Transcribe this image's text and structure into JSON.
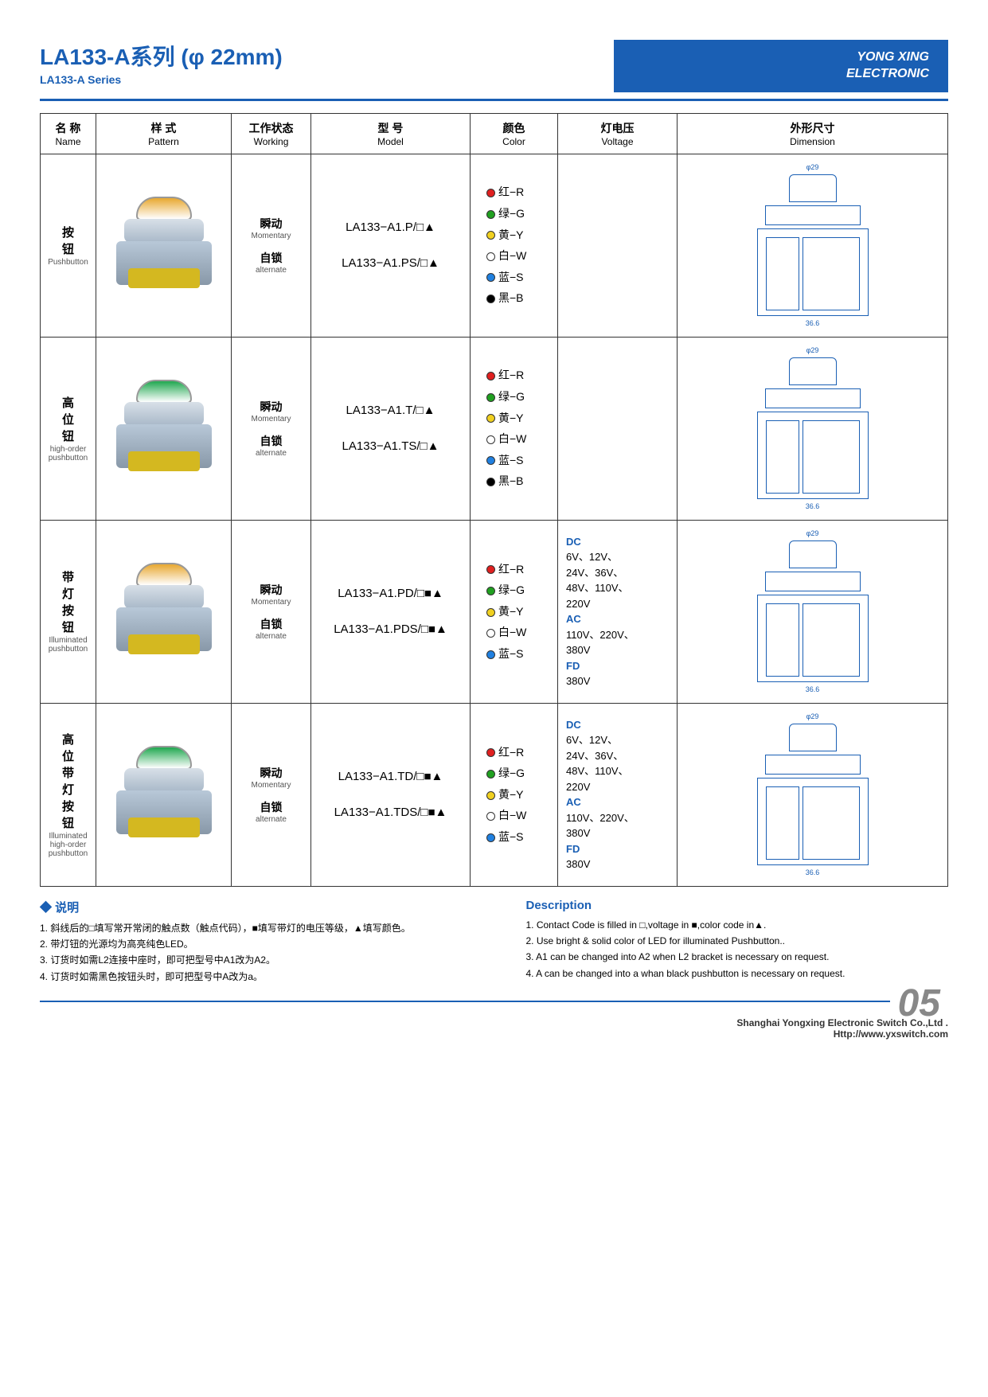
{
  "header": {
    "title": "LA133-A系列 (φ 22mm)",
    "subtitle": "LA133-A Series",
    "brand_line1": "YONG XING",
    "brand_line2": "ELECTRONIC"
  },
  "columns": [
    {
      "cn": "名 称",
      "en": "Name"
    },
    {
      "cn": "样 式",
      "en": "Pattern"
    },
    {
      "cn": "工作状态",
      "en": "Working"
    },
    {
      "cn": "型 号",
      "en": "Model"
    },
    {
      "cn": "颜色",
      "en": "Color"
    },
    {
      "cn": "灯电压",
      "en": "Voltage"
    },
    {
      "cn": "外形尺寸",
      "en": "Dimension"
    }
  ],
  "working_labels": {
    "m_cn": "瞬动",
    "m_en": "Momentary",
    "a_cn": "自锁",
    "a_en": "alternate"
  },
  "colors6": [
    {
      "hex": "#e02020",
      "label": "红−R"
    },
    {
      "hex": "#20a020",
      "label": "绿−G"
    },
    {
      "hex": "#f0d020",
      "label": "黄−Y"
    },
    {
      "hex": "#ffffff",
      "label": "白−W"
    },
    {
      "hex": "#2080e0",
      "label": "蓝−S"
    },
    {
      "hex": "#000000",
      "label": "黑−B"
    }
  ],
  "colors5": [
    {
      "hex": "#e02020",
      "label": "红−R"
    },
    {
      "hex": "#20a020",
      "label": "绿−G"
    },
    {
      "hex": "#f0d020",
      "label": "黄−Y"
    },
    {
      "hex": "#ffffff",
      "label": "白−W"
    },
    {
      "hex": "#2080e0",
      "label": "蓝−S"
    }
  ],
  "voltage_text": {
    "dc": "DC",
    "dc_vals": "6V、12V、\n24V、36V、\n48V、110V、\n220V",
    "ac": "AC",
    "ac_vals": "110V、220V、\n380V",
    "fd": "FD",
    "fd_vals": "380V"
  },
  "rows": [
    {
      "name_cn": "按\n钮",
      "name_en": "Pushbutton",
      "btn_color": "#e8a830",
      "models": [
        "LA133−A1.P/□▲",
        "LA133−A1.PS/□▲"
      ],
      "color_set": "colors6",
      "has_voltage": false,
      "dim_w": "φ29",
      "dim_h": "36.6"
    },
    {
      "name_cn": "高\n位\n钮",
      "name_en": "high-order\npushbutton",
      "btn_color": "#20a850",
      "models": [
        "LA133−A1.T/□▲",
        "LA133−A1.TS/□▲"
      ],
      "color_set": "colors6",
      "has_voltage": false,
      "dim_w": "φ29",
      "dim_h": "36.6"
    },
    {
      "name_cn": "带\n灯\n按\n钮",
      "name_en": "Illuminated\npushbutton",
      "btn_color": "#e8a830",
      "models": [
        "LA133−A1.PD/□■▲",
        "LA133−A1.PDS/□■▲"
      ],
      "color_set": "colors5",
      "has_voltage": true,
      "dim_w": "φ29",
      "dim_h": "36.6"
    },
    {
      "name_cn": "高\n位\n带\n灯\n按\n钮",
      "name_en": "Illuminated\nhigh-order\npushbutton",
      "btn_color": "#20a850",
      "models": [
        "LA133−A1.TD/□■▲",
        "LA133−A1.TDS/□■▲"
      ],
      "color_set": "colors5",
      "has_voltage": true,
      "dim_w": "φ29",
      "dim_h": "36.6"
    }
  ],
  "desc_cn": {
    "title": "说明",
    "items": [
      "1. 斜线后的□填写常开常闭的触点数（触点代码），■填写带灯的电压等级，▲填写颜色。",
      "2. 带灯钮的光源均为高亮纯色LED。",
      "3. 订货时如需L2连接中座时，即可把型号中A1改为A2。",
      "4. 订货时如需黑色按钮头时，即可把型号中A改为a。"
    ]
  },
  "desc_en": {
    "title": "Description",
    "items": [
      "1. Contact Code is filled in □,voltage in ■,color code in▲.",
      "2. Use bright & solid color of LED for illuminated Pushbutton..",
      "3. A1 can be changed into A2 when L2 bracket is necessary on request.",
      "4. A can be changed into a whan black pushbutton is necessary on request."
    ]
  },
  "footer": {
    "page": "05",
    "company": "Shanghai Yongxing Electronic Switch Co.,Ltd .",
    "url": "Http://www.yxswitch.com"
  }
}
